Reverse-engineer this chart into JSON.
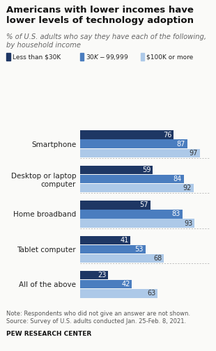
{
  "title": "Americans with lower incomes have\nlower levels of technology adoption",
  "subtitle": "% of U.S. adults who say they have each of the following,\nby household income",
  "categories": [
    "Smartphone",
    "Desktop or laptop\ncomputer",
    "Home broadband",
    "Tablet computer",
    "All of the above"
  ],
  "series": {
    "less_than_30k": [
      76,
      59,
      57,
      41,
      23
    ],
    "30k_99999": [
      87,
      84,
      83,
      53,
      42
    ],
    "100k_plus": [
      97,
      92,
      93,
      68,
      63
    ]
  },
  "colors": {
    "less_than_30k": "#1e3764",
    "30k_99999": "#4a7dbf",
    "100k_plus": "#adc9e8"
  },
  "legend_labels": [
    "Less than $30K",
    "$30K-$99,999",
    "$100K or more"
  ],
  "note": "Note: Respondents who did not give an answer are not shown.\nSource: Survey of U.S. adults conducted Jan. 25-Feb. 8, 2021.",
  "source_label": "PEW RESEARCH CENTER",
  "bar_height": 0.26,
  "xlim": [
    0,
    105
  ],
  "background_color": "#fafaf8"
}
